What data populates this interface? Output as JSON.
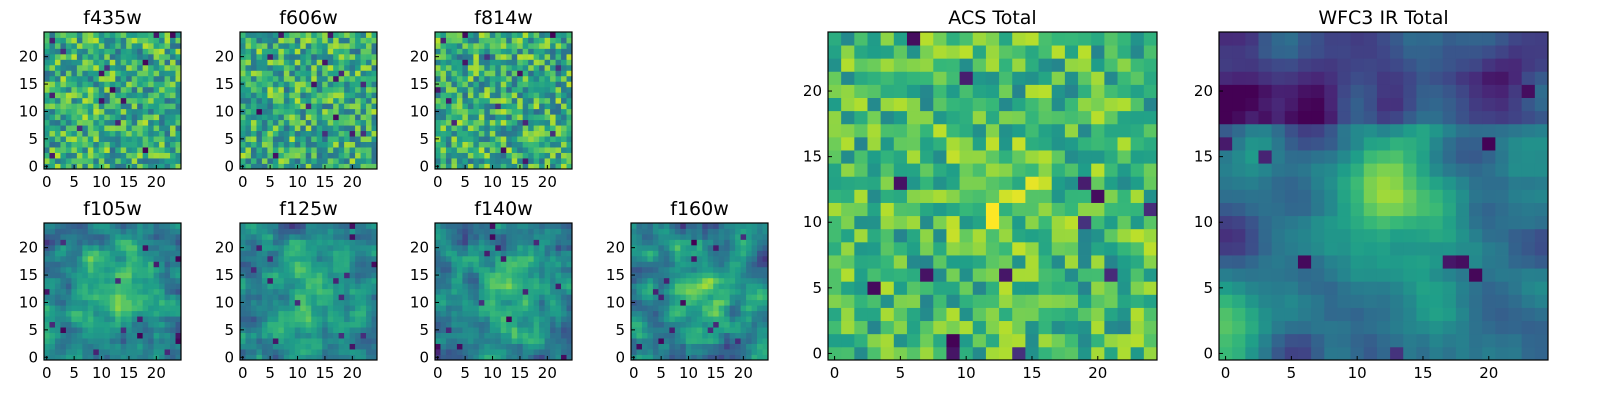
{
  "chart_data": [
    {
      "type": "heatmap",
      "title": "f435w",
      "x_ticks": [
        "0",
        "5",
        "10",
        "15",
        "20"
      ],
      "y_ticks": [
        "0",
        "5",
        "10",
        "15",
        "20"
      ],
      "xlim": [
        -0.5,
        24.5
      ],
      "ylim": [
        -0.5,
        24.5
      ],
      "colormap": "viridis",
      "pixel_grid": [
        25,
        25
      ],
      "seed": 101,
      "mode": "noise"
    },
    {
      "type": "heatmap",
      "title": "f606w",
      "x_ticks": [
        "0",
        "5",
        "10",
        "15",
        "20"
      ],
      "y_ticks": [
        "0",
        "5",
        "10",
        "15",
        "20"
      ],
      "xlim": [
        -0.5,
        24.5
      ],
      "ylim": [
        -0.5,
        24.5
      ],
      "colormap": "viridis",
      "pixel_grid": [
        25,
        25
      ],
      "seed": 202,
      "mode": "noise"
    },
    {
      "type": "heatmap",
      "title": "f814w",
      "x_ticks": [
        "0",
        "5",
        "10",
        "15",
        "20"
      ],
      "y_ticks": [
        "0",
        "5",
        "10",
        "15",
        "20"
      ],
      "xlim": [
        -0.5,
        24.5
      ],
      "ylim": [
        -0.5,
        24.5
      ],
      "colormap": "viridis",
      "pixel_grid": [
        25,
        25
      ],
      "seed": 303,
      "mode": "noise"
    },
    {
      "type": "heatmap",
      "title": "f105w",
      "x_ticks": [
        "0",
        "5",
        "10",
        "15",
        "20"
      ],
      "y_ticks": [
        "0",
        "5",
        "10",
        "15",
        "20"
      ],
      "xlim": [
        -0.5,
        24.5
      ],
      "ylim": [
        -0.5,
        24.5
      ],
      "colormap": "viridis",
      "pixel_grid": [
        25,
        25
      ],
      "seed": 404,
      "mode": "smooth"
    },
    {
      "type": "heatmap",
      "title": "f125w",
      "x_ticks": [
        "0",
        "5",
        "10",
        "15",
        "20"
      ],
      "y_ticks": [
        "0",
        "5",
        "10",
        "15",
        "20"
      ],
      "xlim": [
        -0.5,
        24.5
      ],
      "ylim": [
        -0.5,
        24.5
      ],
      "colormap": "viridis",
      "pixel_grid": [
        25,
        25
      ],
      "seed": 505,
      "mode": "smooth"
    },
    {
      "type": "heatmap",
      "title": "f140w",
      "x_ticks": [
        "0",
        "5",
        "10",
        "15",
        "20"
      ],
      "y_ticks": [
        "0",
        "5",
        "10",
        "15",
        "20"
      ],
      "xlim": [
        -0.5,
        24.5
      ],
      "ylim": [
        -0.5,
        24.5
      ],
      "colormap": "viridis",
      "pixel_grid": [
        25,
        25
      ],
      "seed": 606,
      "mode": "smooth"
    },
    {
      "type": "heatmap",
      "title": "f160w",
      "x_ticks": [
        "0",
        "5",
        "10",
        "15",
        "20"
      ],
      "y_ticks": [
        "0",
        "5",
        "10",
        "15",
        "20"
      ],
      "xlim": [
        -0.5,
        24.5
      ],
      "ylim": [
        -0.5,
        24.5
      ],
      "colormap": "viridis",
      "pixel_grid": [
        25,
        25
      ],
      "seed": 707,
      "mode": "smooth"
    },
    {
      "type": "heatmap",
      "title": "ACS Total",
      "x_ticks": [
        "0",
        "5",
        "10",
        "15",
        "20"
      ],
      "y_ticks": [
        "0",
        "5",
        "10",
        "15",
        "20"
      ],
      "xlim": [
        -0.5,
        24.5
      ],
      "ylim": [
        -0.5,
        24.5
      ],
      "colormap": "viridis",
      "pixel_grid": [
        25,
        25
      ],
      "seed": 808,
      "mode": "acs"
    },
    {
      "type": "heatmap",
      "title": "WFC3 IR Total",
      "x_ticks": [
        "0",
        "5",
        "10",
        "15",
        "20"
      ],
      "y_ticks": [
        "0",
        "5",
        "10",
        "15",
        "20"
      ],
      "xlim": [
        -0.5,
        24.5
      ],
      "ylim": [
        -0.5,
        24.5
      ],
      "colormap": "viridis",
      "pixel_grid": [
        25,
        25
      ],
      "seed": 909,
      "mode": "ir"
    }
  ]
}
